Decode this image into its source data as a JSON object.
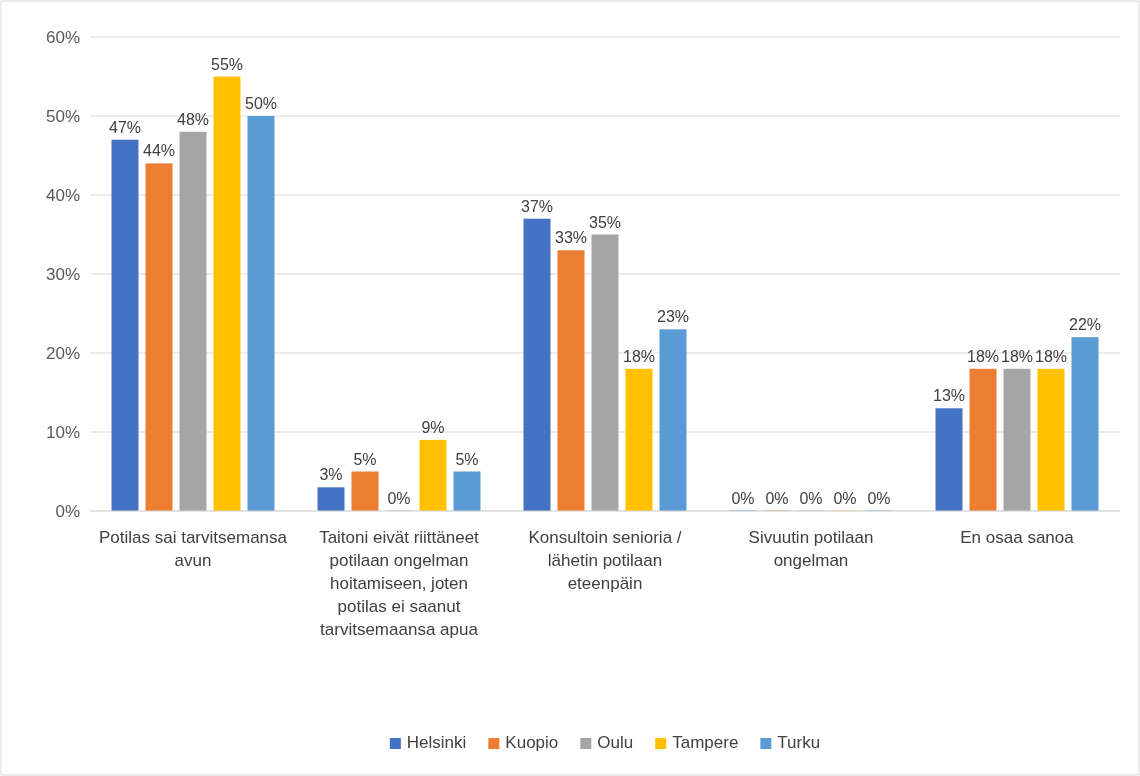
{
  "chart_data": {
    "type": "bar",
    "categories": [
      "Potilas sai tarvitsemansa avun",
      "Taitoni eivät riittäneet potilaan ongelman hoitamiseen, joten potilas ei saanut tarvitsemaansa apua",
      "Konsultoin senioria / lähetin potilaan eteenpäin",
      "Sivuutin potilaan ongelman",
      "En osaa sanoa"
    ],
    "series": [
      {
        "name": "Helsinki",
        "color": "#4472c4",
        "values": [
          47,
          3,
          37,
          0,
          13
        ],
        "value_labels": [
          "47%",
          "3%",
          "37%",
          "0%",
          "13%"
        ]
      },
      {
        "name": "Kuopio",
        "color": "#ed7d31",
        "values": [
          44,
          5,
          33,
          0,
          18
        ],
        "value_labels": [
          "44%",
          "5%",
          "33%",
          "0%",
          "18%"
        ]
      },
      {
        "name": "Oulu",
        "color": "#a5a5a5",
        "values": [
          48,
          0,
          35,
          0,
          18
        ],
        "value_labels": [
          "48%",
          "0%",
          "35%",
          "0%",
          "18%"
        ]
      },
      {
        "name": "Tampere",
        "color": "#ffc000",
        "values": [
          55,
          9,
          18,
          0,
          18
        ],
        "value_labels": [
          "55%",
          "9%",
          "18%",
          "0%",
          "18%"
        ]
      },
      {
        "name": "Turku",
        "color": "#5b9bd5",
        "values": [
          50,
          5,
          23,
          0,
          22
        ],
        "value_labels": [
          "50%",
          "5%",
          "23%",
          "0%",
          "22%"
        ]
      }
    ],
    "ylim": [
      0,
      60
    ],
    "yticks": [
      {
        "value": 0,
        "label": "0%"
      },
      {
        "value": 10,
        "label": "10%"
      },
      {
        "value": 20,
        "label": "20%"
      },
      {
        "value": 30,
        "label": "30%"
      },
      {
        "value": 40,
        "label": "40%"
      },
      {
        "value": 50,
        "label": "50%"
      },
      {
        "value": 60,
        "label": "60%"
      }
    ],
    "grid": "y",
    "legend": "bottom"
  }
}
